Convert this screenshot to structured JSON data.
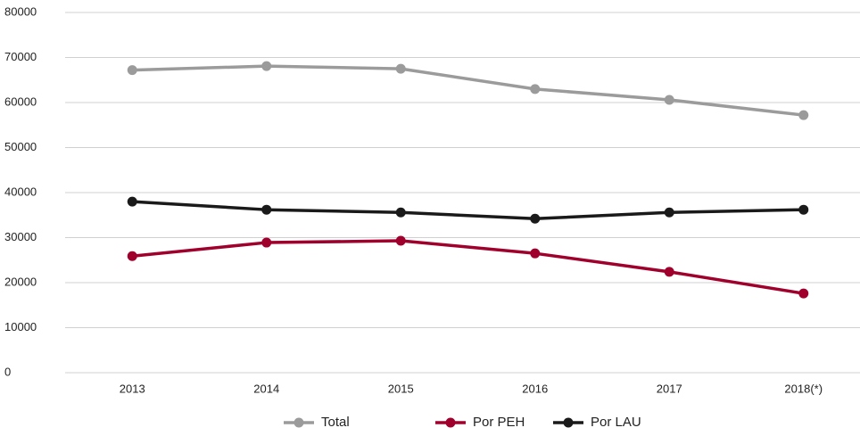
{
  "chart_data": {
    "type": "line",
    "categories": [
      "2013",
      "2014",
      "2015",
      "2016",
      "2017",
      "2018(*)"
    ],
    "series": [
      {
        "name": "Total",
        "color": "#9b9b9b",
        "values": [
          67200,
          68100,
          67500,
          63000,
          60600,
          57200
        ]
      },
      {
        "name": "Por PEH",
        "color": "#a0002c",
        "values": [
          25900,
          28900,
          29300,
          26500,
          22400,
          17600
        ]
      },
      {
        "name": "Por LAU",
        "color": "#1a1a1a",
        "values": [
          38000,
          36200,
          35600,
          34200,
          35600,
          36200
        ]
      }
    ],
    "ylim": [
      0,
      80000
    ],
    "yticks": [
      0,
      10000,
      20000,
      30000,
      40000,
      50000,
      60000,
      70000,
      80000
    ],
    "grid": true,
    "legend": "bottom"
  }
}
